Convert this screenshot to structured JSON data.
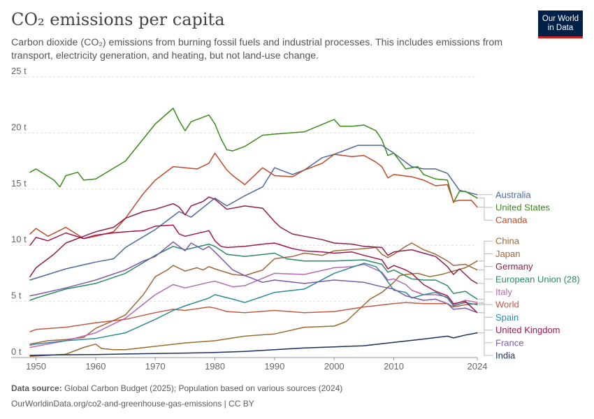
{
  "header": {
    "title": "CO₂ emissions per capita",
    "subtitle": "Carbon dioxide (CO₂) emissions from burning fossil fuels and industrial processes. This includes emissions from transport, electricity generation, and heating, but not land-use change.",
    "logo_line1": "Our World",
    "logo_line2": "in Data",
    "logo_color": "#002147",
    "logo_accent": "#ce261e"
  },
  "footer": {
    "source_label": "Data source:",
    "source_text": "Global Carbon Budget (2025); Population based on various sources (2024)",
    "url_text": "OurWorldinData.org/co2-and-greenhouse-gas-emissions | CC BY"
  },
  "chart_data": {
    "type": "line",
    "xlim": [
      1949,
      2024
    ],
    "ylim": [
      0,
      25
    ],
    "x_ticks": [
      1950,
      1960,
      1970,
      1980,
      1990,
      2000,
      2010,
      2024
    ],
    "y_ticks": [
      0,
      5,
      10,
      15,
      20,
      25
    ],
    "y_tick_labels": [
      "0 t",
      "5 t",
      "10 t",
      "15 t",
      "20 t",
      "25 t"
    ],
    "grid": "horizontal dashed",
    "legend": "right, labels at line ends",
    "series": [
      {
        "name": "Australia",
        "color": "#4c6a9c",
        "x": [
          1949,
          1955,
          1960,
          1963,
          1965,
          1970,
          1974,
          1976,
          1980,
          1982,
          1985,
          1988,
          1990,
          1993,
          1995,
          1998,
          2000,
          2004,
          2008,
          2010,
          2013,
          2015,
          2017,
          2019,
          2021,
          2024
        ],
        "y": [
          6.9,
          7.9,
          8.5,
          8.8,
          9.8,
          11.4,
          13.0,
          12.5,
          14.2,
          13.5,
          14.4,
          15.2,
          16.9,
          16.3,
          16.7,
          17.8,
          18.1,
          18.9,
          18.9,
          18.2,
          17.0,
          16.8,
          16.8,
          16.4,
          14.9,
          14.5
        ]
      },
      {
        "name": "United States",
        "color": "#3c8a1a",
        "x": [
          1949,
          1950,
          1953,
          1954,
          1955,
          1957,
          1958,
          1960,
          1965,
          1970,
          1973,
          1974,
          1975,
          1976,
          1977,
          1979,
          1980,
          1981,
          1982,
          1983,
          1985,
          1988,
          1990,
          1995,
          2000,
          2001,
          2003,
          2005,
          2007,
          2008,
          2009,
          2010,
          2012,
          2014,
          2015,
          2017,
          2019,
          2020,
          2021,
          2022,
          2024
        ],
        "y": [
          16.5,
          16.8,
          15.8,
          15.2,
          16.2,
          16.5,
          15.8,
          15.9,
          17.5,
          20.8,
          22.2,
          21.1,
          20.2,
          21.0,
          21.2,
          21.6,
          20.8,
          19.5,
          18.5,
          18.4,
          18.8,
          19.8,
          19.9,
          20.1,
          21.2,
          20.6,
          20.6,
          20.7,
          20.2,
          19.4,
          18.0,
          18.2,
          16.8,
          17.0,
          16.3,
          15.9,
          15.8,
          13.8,
          14.8,
          14.8,
          14.2
        ]
      },
      {
        "name": "Canada",
        "color": "#c1482a",
        "x": [
          1949,
          1950,
          1952,
          1955,
          1958,
          1960,
          1963,
          1965,
          1968,
          1970,
          1973,
          1975,
          1977,
          1979,
          1980,
          1982,
          1983,
          1985,
          1988,
          1990,
          1993,
          1995,
          1998,
          2000,
          2003,
          2005,
          2007,
          2008,
          2009,
          2010,
          2013,
          2015,
          2017,
          2019,
          2020,
          2021,
          2023,
          2024
        ],
        "y": [
          11.0,
          11.5,
          10.8,
          11.6,
          10.6,
          10.8,
          11.2,
          12.4,
          14.6,
          15.8,
          17.0,
          16.9,
          16.8,
          17.3,
          18.2,
          16.7,
          16.2,
          15.4,
          16.9,
          16.2,
          16.1,
          16.7,
          17.3,
          18.1,
          17.9,
          18.0,
          17.4,
          17.0,
          16.0,
          16.3,
          16.1,
          15.8,
          15.3,
          15.4,
          13.9,
          14.0,
          14.0,
          13.4
        ]
      },
      {
        "name": "China",
        "color": "#9a6a2e",
        "x": [
          1949,
          1955,
          1958,
          1960,
          1961,
          1963,
          1965,
          1970,
          1975,
          1980,
          1985,
          1990,
          1995,
          2000,
          2002,
          2004,
          2006,
          2008,
          2010,
          2011,
          2012,
          2014,
          2016,
          2018,
          2020,
          2022,
          2024
        ],
        "y": [
          0.1,
          0.3,
          0.9,
          1.2,
          0.8,
          0.7,
          0.7,
          1.0,
          1.3,
          1.5,
          1.9,
          2.1,
          2.7,
          2.8,
          3.2,
          4.2,
          5.2,
          5.8,
          6.7,
          7.3,
          7.4,
          7.5,
          7.2,
          7.4,
          7.7,
          8.0,
          8.6
        ]
      },
      {
        "name": "Japan",
        "color": "#a0653b",
        "x": [
          1949,
          1952,
          1955,
          1958,
          1960,
          1963,
          1965,
          1968,
          1970,
          1972,
          1973,
          1975,
          1977,
          1978,
          1979,
          1980,
          1983,
          1985,
          1988,
          1990,
          1993,
          1995,
          1998,
          2000,
          2005,
          2007,
          2008,
          2009,
          2010,
          2012,
          2013,
          2015,
          2017,
          2019,
          2020,
          2022,
          2024
        ],
        "y": [
          1.2,
          1.5,
          1.6,
          1.8,
          2.6,
          3.3,
          3.8,
          5.6,
          7.2,
          7.8,
          8.2,
          7.7,
          8.0,
          7.8,
          8.1,
          7.9,
          7.4,
          7.3,
          7.8,
          8.8,
          9.0,
          9.3,
          9.1,
          9.5,
          9.7,
          9.8,
          9.2,
          8.9,
          9.2,
          9.9,
          10.2,
          9.6,
          9.2,
          8.6,
          8.2,
          8.3,
          7.8
        ]
      },
      {
        "name": "Germany",
        "color": "#8a1f4c",
        "x": [
          1949,
          1950,
          1953,
          1955,
          1958,
          1960,
          1963,
          1965,
          1968,
          1970,
          1973,
          1974,
          1975,
          1976,
          1978,
          1979,
          1980,
          1982,
          1985,
          1988,
          1990,
          1991,
          1993,
          1995,
          1998,
          2000,
          2003,
          2005,
          2008,
          2009,
          2010,
          2013,
          2015,
          2017,
          2019,
          2020,
          2021,
          2023,
          2024
        ],
        "y": [
          7.2,
          8.0,
          9.2,
          10.2,
          10.8,
          11.2,
          11.6,
          12.4,
          13.0,
          13.2,
          13.7,
          13.4,
          12.7,
          13.5,
          13.9,
          14.3,
          14.1,
          13.2,
          13.5,
          13.3,
          12.1,
          11.6,
          11.0,
          10.8,
          10.5,
          10.2,
          10.1,
          9.9,
          9.8,
          9.1,
          9.4,
          9.6,
          9.3,
          9.0,
          8.1,
          7.4,
          7.9,
          6.9,
          6.6
        ]
      },
      {
        "name": "European Union (28)",
        "color": "#2a8a64",
        "x": [
          1949,
          1950,
          1955,
          1960,
          1965,
          1970,
          1973,
          1975,
          1979,
          1980,
          1982,
          1985,
          1990,
          1992,
          1995,
          2000,
          2005,
          2008,
          2009,
          2010,
          2013,
          2015,
          2017,
          2019,
          2020,
          2022,
          2024
        ],
        "y": [
          5.1,
          5.3,
          6.1,
          6.6,
          7.5,
          9.1,
          9.9,
          9.6,
          10.1,
          9.9,
          9.2,
          9.0,
          9.3,
          8.8,
          8.6,
          8.6,
          8.7,
          8.3,
          7.6,
          7.8,
          7.0,
          6.9,
          6.9,
          6.4,
          5.7,
          5.9,
          5.2
        ]
      },
      {
        "name": "Italy",
        "color": "#b368b0",
        "x": [
          1949,
          1950,
          1955,
          1960,
          1963,
          1965,
          1970,
          1973,
          1975,
          1979,
          1980,
          1983,
          1985,
          1990,
          1995,
          2000,
          2003,
          2005,
          2008,
          2009,
          2010,
          2012,
          2013,
          2015,
          2017,
          2019,
          2020,
          2022,
          2024
        ],
        "y": [
          0.9,
          1.0,
          1.5,
          2.2,
          3.0,
          3.5,
          5.6,
          6.5,
          6.2,
          6.7,
          6.8,
          6.3,
          6.4,
          7.5,
          7.4,
          8.0,
          8.1,
          8.3,
          7.6,
          6.9,
          7.0,
          6.5,
          6.0,
          5.6,
          5.6,
          5.4,
          4.7,
          5.1,
          4.9
        ]
      },
      {
        "name": "World",
        "color": "#c15a45",
        "x": [
          1949,
          1950,
          1955,
          1960,
          1965,
          1970,
          1973,
          1975,
          1979,
          1980,
          1982,
          1985,
          1990,
          1995,
          2000,
          2005,
          2010,
          2012,
          2015,
          2019,
          2020,
          2022,
          2024
        ],
        "y": [
          2.3,
          2.5,
          2.7,
          3.1,
          3.4,
          4.0,
          4.3,
          4.2,
          4.5,
          4.4,
          4.1,
          4.0,
          4.2,
          4.0,
          4.1,
          4.5,
          4.8,
          4.9,
          4.8,
          4.8,
          4.5,
          4.7,
          4.8
        ]
      },
      {
        "name": "Spain",
        "color": "#2a8a9a",
        "x": [
          1949,
          1950,
          1955,
          1960,
          1965,
          1970,
          1973,
          1975,
          1979,
          1980,
          1983,
          1985,
          1990,
          1995,
          2000,
          2005,
          2007,
          2008,
          2010,
          2012,
          2013,
          2015,
          2017,
          2019,
          2020,
          2022,
          2024
        ],
        "y": [
          1.1,
          1.2,
          1.5,
          1.7,
          2.2,
          3.4,
          4.2,
          4.6,
          5.3,
          5.6,
          5.2,
          4.9,
          5.8,
          6.1,
          7.5,
          8.4,
          8.1,
          7.5,
          6.0,
          5.8,
          5.3,
          5.6,
          5.8,
          5.3,
          4.6,
          4.9,
          4.7
        ]
      },
      {
        "name": "United Kingdom",
        "color": "#a0174e",
        "x": [
          1949,
          1950,
          1952,
          1955,
          1958,
          1960,
          1963,
          1965,
          1968,
          1970,
          1973,
          1974,
          1975,
          1979,
          1980,
          1981,
          1982,
          1985,
          1988,
          1990,
          1993,
          1995,
          1998,
          2000,
          2003,
          2005,
          2008,
          2009,
          2010,
          2012,
          2013,
          2015,
          2017,
          2019,
          2020,
          2022,
          2024
        ],
        "y": [
          10.0,
          10.7,
          10.4,
          11.1,
          10.6,
          10.9,
          11.1,
          11.2,
          11.3,
          11.7,
          11.8,
          11.0,
          10.8,
          11.3,
          10.4,
          9.9,
          9.8,
          9.9,
          10.1,
          10.2,
          9.7,
          9.5,
          9.4,
          9.3,
          9.4,
          9.1,
          8.7,
          7.9,
          8.2,
          7.8,
          7.5,
          6.5,
          5.9,
          5.5,
          4.8,
          5.0,
          4.0
        ]
      },
      {
        "name": "France",
        "color": "#7e58a8",
        "x": [
          1949,
          1950,
          1955,
          1960,
          1965,
          1968,
          1970,
          1973,
          1975,
          1976,
          1978,
          1979,
          1980,
          1983,
          1985,
          1988,
          1990,
          1995,
          2000,
          2005,
          2008,
          2010,
          2012,
          2015,
          2017,
          2019,
          2020,
          2022,
          2024
        ],
        "y": [
          5.5,
          5.6,
          6.2,
          6.9,
          7.8,
          8.6,
          9.0,
          10.3,
          9.5,
          10.2,
          9.6,
          9.9,
          9.4,
          7.8,
          7.3,
          6.7,
          6.9,
          6.6,
          6.9,
          6.7,
          6.3,
          6.1,
          5.5,
          5.1,
          5.2,
          4.8,
          4.3,
          4.4,
          4.0
        ]
      },
      {
        "name": "India",
        "color": "#18305a",
        "x": [
          1949,
          1955,
          1960,
          1965,
          1970,
          1975,
          1980,
          1985,
          1990,
          1995,
          2000,
          2005,
          2010,
          2015,
          2019,
          2020,
          2022,
          2024
        ],
        "y": [
          0.2,
          0.25,
          0.27,
          0.32,
          0.36,
          0.4,
          0.45,
          0.55,
          0.7,
          0.85,
          0.95,
          1.05,
          1.35,
          1.65,
          1.9,
          1.75,
          2.0,
          2.2
        ]
      }
    ]
  }
}
